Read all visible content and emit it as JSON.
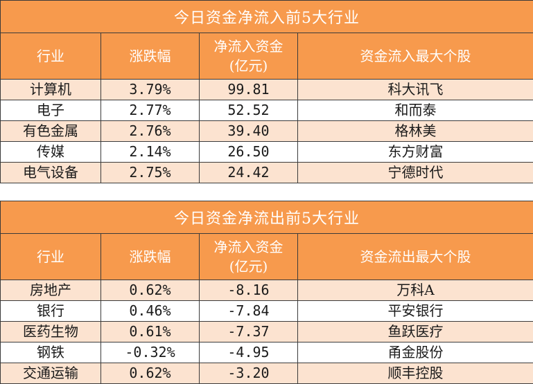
{
  "inflow": {
    "title": "今日资金净流入前5大行业",
    "headers": {
      "industry": "行业",
      "change": "涨跌幅",
      "net_line1": "净流入资金",
      "net_line2": "(亿元)",
      "top_stock": "资金流入最大个股"
    },
    "rows": [
      {
        "industry": "计算机",
        "change": "3.79%",
        "net": "99.81",
        "top_stock": "科大讯飞"
      },
      {
        "industry": "电子",
        "change": "2.77%",
        "net": "52.52",
        "top_stock": "和而泰"
      },
      {
        "industry": "有色金属",
        "change": "2.76%",
        "net": "39.40",
        "top_stock": "格林美"
      },
      {
        "industry": "传媒",
        "change": "2.14%",
        "net": "26.50",
        "top_stock": "东方财富"
      },
      {
        "industry": "电气设备",
        "change": "2.75%",
        "net": "24.42",
        "top_stock": "宁德时代"
      }
    ]
  },
  "outflow": {
    "title": "今日资金净流出前5大行业",
    "headers": {
      "industry": "行业",
      "change": "涨跌幅",
      "net_line1": "净流入资金",
      "net_line2": "(亿元)",
      "top_stock": "资金流出最大个股"
    },
    "rows": [
      {
        "industry": "房地产",
        "change": "0.62%",
        "net": "-8.16",
        "top_stock": "万科A"
      },
      {
        "industry": "银行",
        "change": "0.46%",
        "net": "-7.84",
        "top_stock": "平安银行"
      },
      {
        "industry": "医药生物",
        "change": "0.61%",
        "net": "-7.37",
        "top_stock": "鱼跃医疗"
      },
      {
        "industry": "钢铁",
        "change": "-0.32%",
        "net": "-4.95",
        "top_stock": "甬金股份"
      },
      {
        "industry": "交通运输",
        "change": "0.62%",
        "net": "-3.20",
        "top_stock": "顺丰控股"
      }
    ]
  },
  "colors": {
    "header_bg": "#f79a4d",
    "header_text": "#ffffff",
    "row_shade": "#fce3d0",
    "border": "#3a3a3a"
  }
}
